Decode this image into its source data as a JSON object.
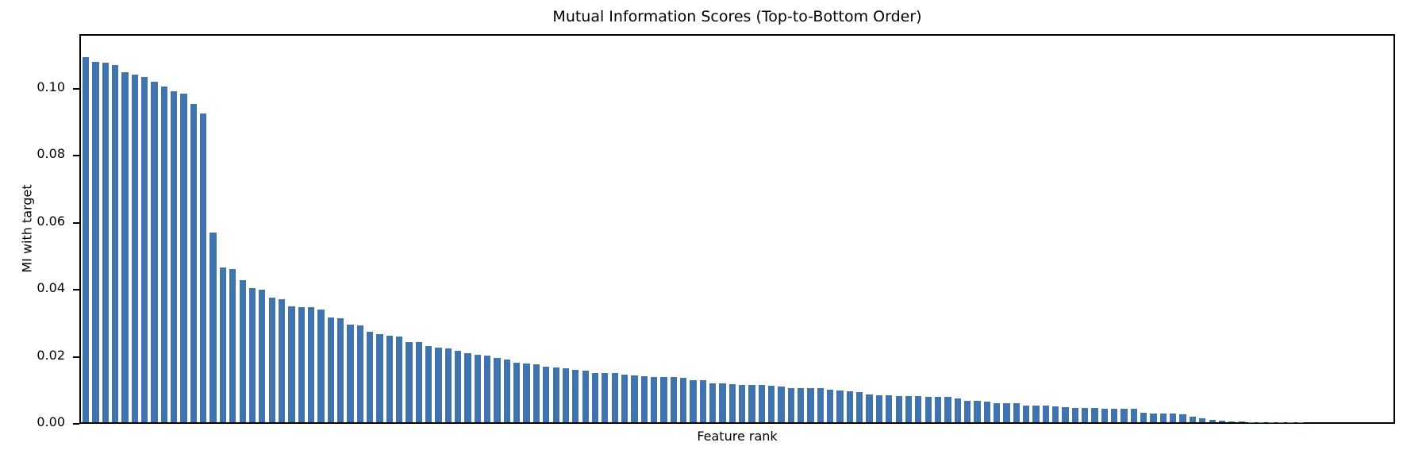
{
  "figure": {
    "title": "Mutual Information Scores (Top-to-Bottom Order)",
    "xlabel": "Feature rank",
    "ylabel": "MI with target"
  },
  "chart_data": {
    "type": "bar",
    "title": "Mutual Information Scores (Top-to-Bottom Order)",
    "xlabel": "Feature rank",
    "ylabel": "MI with target",
    "x_description": "feature rank 1..134, sorted descending, no x tick labels shown",
    "n_bars": 134,
    "values": [
      0.1088,
      0.1075,
      0.1073,
      0.1066,
      0.1043,
      0.1036,
      0.103,
      0.1015,
      0.1002,
      0.0987,
      0.0981,
      0.095,
      0.0921,
      0.0565,
      0.0462,
      0.0456,
      0.0423,
      0.0399,
      0.0395,
      0.0371,
      0.0367,
      0.0346,
      0.0344,
      0.0343,
      0.0336,
      0.0313,
      0.0311,
      0.0291,
      0.0288,
      0.027,
      0.0264,
      0.0258,
      0.0256,
      0.024,
      0.0238,
      0.0227,
      0.0222,
      0.022,
      0.0214,
      0.0207,
      0.0201,
      0.02,
      0.0192,
      0.0186,
      0.0178,
      0.0175,
      0.0172,
      0.0165,
      0.0164,
      0.0161,
      0.0156,
      0.0153,
      0.0148,
      0.0147,
      0.0147,
      0.0143,
      0.014,
      0.0137,
      0.0136,
      0.0135,
      0.0134,
      0.0133,
      0.0126,
      0.0126,
      0.0117,
      0.0116,
      0.0113,
      0.0112,
      0.0112,
      0.0111,
      0.0108,
      0.0107,
      0.0103,
      0.0103,
      0.0102,
      0.0102,
      0.0098,
      0.0095,
      0.0093,
      0.0091,
      0.0084,
      0.0081,
      0.008,
      0.0078,
      0.0077,
      0.0077,
      0.0076,
      0.0076,
      0.0075,
      0.0072,
      0.0064,
      0.0064,
      0.0062,
      0.0058,
      0.0058,
      0.0057,
      0.005,
      0.0049,
      0.0049,
      0.0047,
      0.0044,
      0.0043,
      0.0042,
      0.0042,
      0.0041,
      0.0041,
      0.004,
      0.004,
      0.0028,
      0.0027,
      0.0026,
      0.0025,
      0.0023,
      0.0016,
      0.0011,
      0.0007,
      0.0004,
      0.0002,
      0.0002,
      0.0001,
      0.0001,
      0.0001,
      0.0001,
      0.0001,
      0.0001,
      0.0,
      0.0,
      0.0,
      0.0,
      0.0,
      0.0,
      0.0,
      0.0,
      0.0
    ],
    "yticks": [
      0.0,
      0.02,
      0.04,
      0.06,
      0.08,
      0.1
    ],
    "ytick_labels": [
      "0.00",
      "0.02",
      "0.04",
      "0.06",
      "0.08",
      "0.10"
    ],
    "ylim": [
      0,
      0.1153
    ],
    "bar_color": "#3f74ae",
    "background": "#ffffff",
    "grid": false,
    "legend": null,
    "x_tick_labels_visible": false
  }
}
